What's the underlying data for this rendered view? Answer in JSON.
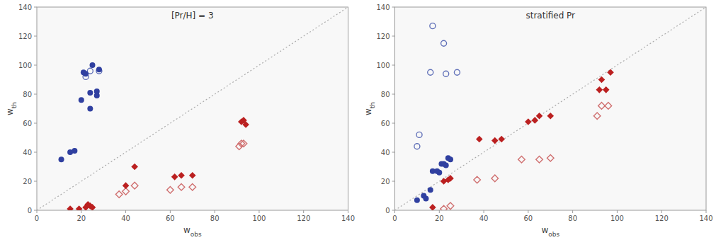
{
  "chart_data": [
    {
      "type": "scatter",
      "title": "[Pr/H] = 3",
      "xlabel": "wobs",
      "ylabel": "wth",
      "xlim": [
        0,
        140
      ],
      "ylim": [
        0,
        140
      ],
      "xticks": [
        0,
        20,
        40,
        60,
        80,
        100,
        120,
        140
      ],
      "yticks": [
        0,
        20,
        40,
        60,
        80,
        100,
        120,
        140
      ],
      "grid": false,
      "series": [
        {
          "marker": "circle",
          "color": "#3040a0",
          "x": [
            11,
            15,
            17,
            20,
            21,
            22,
            24,
            24,
            25,
            27,
            27,
            28
          ],
          "values": [
            35,
            40,
            41,
            76,
            95,
            94,
            70,
            81,
            100,
            79,
            82,
            97
          ]
        },
        {
          "marker": "open-circle",
          "color": "#6070b8",
          "x": [
            22,
            24,
            28
          ],
          "values": [
            92,
            96,
            96
          ]
        },
        {
          "marker": "diamond",
          "color": "#bb2020",
          "x": [
            15,
            19,
            22,
            23,
            24,
            25,
            40,
            44,
            62,
            65,
            70,
            92,
            93,
            94
          ],
          "values": [
            1,
            1,
            2,
            4,
            3,
            2,
            17,
            30,
            23,
            24,
            24,
            61,
            62,
            59
          ]
        },
        {
          "marker": "open-diamond",
          "color": "#d07070",
          "x": [
            37,
            40,
            44,
            60,
            65,
            70,
            91,
            92,
            93
          ],
          "values": [
            11,
            13,
            17,
            14,
            16,
            16,
            44,
            46,
            46
          ]
        }
      ]
    },
    {
      "type": "scatter",
      "title": "stratified Pr",
      "xlabel": "wobs",
      "ylabel": "wth",
      "xlim": [
        0,
        140
      ],
      "ylim": [
        0,
        140
      ],
      "xticks": [
        0,
        20,
        40,
        60,
        80,
        100,
        120,
        140
      ],
      "yticks": [
        0,
        20,
        40,
        60,
        80,
        100,
        120,
        140
      ],
      "grid": false,
      "series": [
        {
          "marker": "circle",
          "color": "#3040a0",
          "x": [
            10,
            13,
            14,
            16,
            17,
            19,
            20,
            21,
            22,
            23,
            24,
            25
          ],
          "values": [
            7,
            10,
            8,
            14,
            27,
            27,
            26,
            32,
            32,
            31,
            36,
            35
          ]
        },
        {
          "marker": "open-circle",
          "color": "#6070b8",
          "x": [
            10,
            11,
            16,
            17,
            22,
            23,
            28
          ],
          "values": [
            44,
            52,
            95,
            127,
            115,
            94,
            95
          ]
        },
        {
          "marker": "diamond",
          "color": "#bb2020",
          "x": [
            17,
            22,
            24,
            25,
            38,
            45,
            48,
            60,
            63,
            65,
            70,
            92,
            93,
            95,
            97
          ],
          "values": [
            2,
            20,
            21,
            22,
            49,
            48,
            49,
            61,
            62,
            65,
            65,
            83,
            90,
            83,
            95
          ]
        },
        {
          "marker": "open-diamond",
          "color": "#d07070",
          "x": [
            22,
            25,
            37,
            45,
            57,
            65,
            70,
            91,
            93,
            96
          ],
          "values": [
            1,
            3,
            21,
            22,
            35,
            35,
            36,
            65,
            72,
            72
          ]
        }
      ]
    }
  ]
}
